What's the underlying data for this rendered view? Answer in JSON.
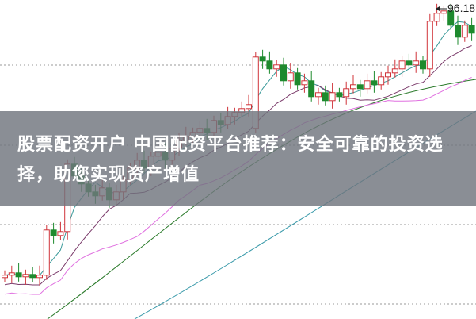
{
  "chart_data": {
    "type": "candlestick",
    "title": "",
    "xlabel": "",
    "ylabel": "",
    "grid": "horizontal dotted",
    "max_price_label": "96.18",
    "opens": [
      62.2,
      62.5,
      62.8,
      62.3,
      62.6,
      62.2,
      62.5,
      68.2,
      67.5,
      68.0,
      76.5,
      75.0,
      74.0,
      73.0,
      72.5,
      73.5,
      72.0,
      73.0,
      74.5,
      76.0,
      77.0,
      76.0,
      77.5,
      78.0,
      77.0,
      78.5,
      79.5,
      80.0,
      80.5,
      81.0,
      80.5,
      82.0,
      81.5,
      82.5,
      83.0,
      83.5,
      81.0,
      90.0,
      89.5,
      88.5,
      89.0,
      87.0,
      88.0,
      86.5,
      87.0,
      85.0,
      85.5,
      84.5,
      85.5,
      85.0,
      86.0,
      86.5,
      86.0,
      87.0,
      86.5,
      87.5,
      88.0,
      88.5,
      89.5,
      89.0,
      89.5,
      88.5,
      94.5,
      95.5,
      95.8,
      94.0,
      92.5,
      94.0
    ],
    "closes": [
      62.5,
      62.8,
      62.3,
      62.6,
      62.2,
      62.5,
      68.2,
      67.5,
      68.0,
      76.5,
      75.0,
      74.0,
      73.0,
      72.5,
      73.5,
      72.0,
      73.0,
      74.5,
      76.0,
      77.0,
      76.0,
      77.5,
      78.0,
      77.0,
      78.5,
      79.5,
      80.0,
      80.5,
      81.0,
      80.5,
      82.0,
      81.5,
      82.5,
      83.0,
      83.5,
      84.0,
      90.0,
      89.5,
      88.5,
      89.0,
      87.0,
      88.0,
      86.5,
      87.0,
      85.0,
      85.5,
      84.5,
      85.5,
      85.0,
      86.0,
      86.5,
      86.0,
      87.0,
      86.5,
      87.5,
      88.0,
      88.5,
      89.5,
      89.0,
      89.5,
      88.5,
      94.5,
      95.5,
      95.8,
      94.0,
      92.5,
      94.0,
      93.0
    ],
    "moving_averages": [
      5,
      10,
      20
    ],
    "colors": {
      "up": "#d0343a",
      "down": "#1e8a2e",
      "ma5": "#3a9a9a",
      "ma10": "#7a3a6a",
      "ma20": "#e070e0",
      "long1": "#2a7a2a",
      "long2": "#3a9aaa",
      "grid": "#999999"
    }
  },
  "banner": {
    "text": "股票配资开户 中国配资平台推荐：安全可靠的投资选择，助您实现资产增值"
  }
}
